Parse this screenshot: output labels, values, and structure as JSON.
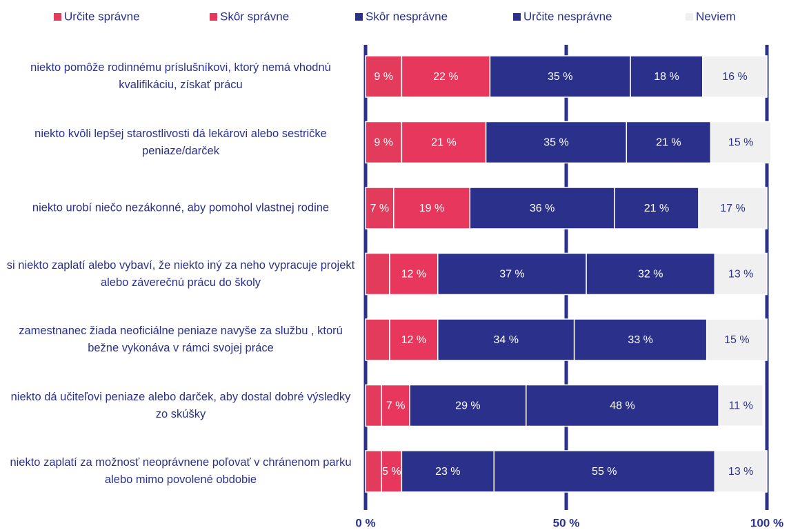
{
  "chart_data": {
    "type": "stacked_bar_horizontal",
    "categories": [
      "niekto pomôže rodinnému príslušníkovi, ktorý nemá vhodnú kvalifikáciu, získať prácu",
      "niekto kvôli lepšej starostlivosti dá lekárovi alebo sestričke peniaze/darček",
      "niekto urobí niečo nezákonné, aby pomohol vlastnej rodine",
      "si niekto zaplatí alebo vybaví, že niekto iný za neho vypracuje projekt alebo záverečnú prácu do školy",
      "zamestnanec žiada neoficiálne peniaze navyše za službu , ktorú bežne vykonáva v rámci svojej práce",
      "niekto dá učiteľovi peniaze alebo darček, aby dostal dobré výsledky zo skúšky",
      "niekto zaplatí za možnosť neoprávnene poľovať v chránenom parku alebo mimo povolené obdobie"
    ],
    "series": [
      {
        "name": "Určite správne",
        "color": "#e33b5c",
        "values": [
          9,
          9,
          7,
          6,
          6,
          4,
          4
        ],
        "value_labels": [
          "9 %",
          "9 %",
          "7 %",
          null,
          null,
          null,
          null
        ]
      },
      {
        "name": "Skôr správne",
        "color": "#e8375d",
        "values": [
          22,
          21,
          19,
          12,
          12,
          7,
          5
        ],
        "value_labels": [
          "22 %",
          "21 %",
          "19 %",
          "12 %",
          "12 %",
          "7 %",
          "5 %"
        ]
      },
      {
        "name": "Skôr nesprávne",
        "color": "#2b318a",
        "values": [
          35,
          35,
          36,
          37,
          34,
          29,
          23
        ],
        "value_labels": [
          "35 %",
          "35 %",
          "36 %",
          "37 %",
          "34 %",
          "29 %",
          "23 %"
        ]
      },
      {
        "name": "Určite nesprávne",
        "color": "#2b318a",
        "values": [
          18,
          21,
          21,
          32,
          33,
          48,
          55
        ],
        "value_labels": [
          "18 %",
          "21 %",
          "21 %",
          "32 %",
          "33 %",
          "48 %",
          "55 %"
        ]
      },
      {
        "name": "Neviem",
        "color": "#f0f0f0",
        "values": [
          16,
          15,
          17,
          13,
          15,
          11,
          13
        ],
        "value_labels": [
          "16 %",
          "15 %",
          "17 %",
          "13 %",
          "15 %",
          "11 %",
          "13 %"
        ]
      }
    ],
    "xlim": [
      0,
      100
    ],
    "xticks": [
      {
        "value": 0,
        "label": "0 %"
      },
      {
        "value": 50,
        "label": "50 %"
      },
      {
        "value": 100,
        "label": "100 %"
      }
    ],
    "grid": true
  }
}
